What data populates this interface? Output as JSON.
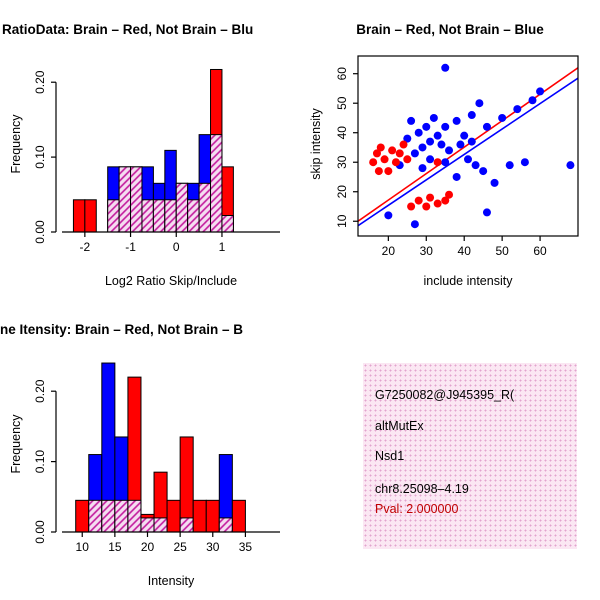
{
  "figure": {
    "background": "#FFFFFF"
  },
  "colors": {
    "brain_red": "#FF0000",
    "not_brain_blue": "#0000FF",
    "overlap_hatch": "#C2189C",
    "overlap_bg": "#F5DDF1",
    "axis": "#000000",
    "info_bg": "#FBE7F3",
    "info_dot": "#E2A3CE",
    "pval": "#C00000"
  },
  "chart_data": [
    {
      "id": "hist_ratio",
      "type": "bar",
      "subtype": "overlaid-histogram",
      "title": "RatioData: Brain – Red, Not Brain – Blu",
      "xlabel": "Log2 Ratio Skip/Include",
      "ylabel": "Frequency",
      "bin_width": 0.25,
      "bin_left_edges": [
        -2.25,
        -2.0,
        -1.75,
        -1.5,
        -1.25,
        -1.0,
        -0.75,
        -0.5,
        -0.25,
        0.0,
        0.25,
        0.5,
        0.75,
        1.0
      ],
      "series": [
        {
          "name": "Brain",
          "color": "#FF0000",
          "values": [
            0.043,
            0.043,
            0,
            0.043,
            0.087,
            0.087,
            0.043,
            0.043,
            0.043,
            0.065,
            0.043,
            0.065,
            0.217,
            0.087
          ]
        },
        {
          "name": "Not Brain",
          "color": "#0000FF",
          "values": [
            0,
            0,
            0,
            0.087,
            0.087,
            0.087,
            0.087,
            0.065,
            0.109,
            0.065,
            0.065,
            0.13,
            0.13,
            0.022
          ]
        }
      ],
      "xticks": [
        -2,
        -1,
        0,
        1
      ],
      "yticks": [
        0,
        0.1,
        0.2
      ],
      "xlim": [
        -2.5,
        2.27
      ],
      "ylim": [
        0,
        0.235
      ],
      "grid": false,
      "legend": "none"
    },
    {
      "id": "scatter_intensity",
      "type": "scatter",
      "title": "Brain – Red, Not Brain – Blue",
      "xlabel": "include intensity",
      "ylabel": "skip intensity",
      "xticks": [
        20,
        30,
        40,
        50,
        60
      ],
      "yticks": [
        10,
        20,
        30,
        40,
        50,
        60
      ],
      "xlim": [
        12,
        70
      ],
      "ylim": [
        5,
        66
      ],
      "grid": false,
      "legend": "none",
      "series": [
        {
          "name": "Brain",
          "color": "#FF0000",
          "points": [
            [
              16,
              30
            ],
            [
              17,
              33
            ],
            [
              17.5,
              27
            ],
            [
              18,
              35
            ],
            [
              19,
              31
            ],
            [
              20,
              27
            ],
            [
              21,
              34
            ],
            [
              22,
              30
            ],
            [
              23,
              33
            ],
            [
              24,
              36
            ],
            [
              25,
              31
            ],
            [
              26,
              15
            ],
            [
              28,
              17
            ],
            [
              30,
              15
            ],
            [
              31,
              18
            ],
            [
              33,
              16
            ],
            [
              35,
              17
            ],
            [
              36,
              19
            ],
            [
              33,
              30
            ]
          ]
        },
        {
          "name": "Not Brain",
          "color": "#0000FF",
          "points": [
            [
              20,
              12
            ],
            [
              23,
              29
            ],
            [
              25,
              38
            ],
            [
              26,
              44
            ],
            [
              27,
              33
            ],
            [
              27,
              9
            ],
            [
              28,
              40
            ],
            [
              29,
              35
            ],
            [
              29,
              28
            ],
            [
              30,
              42
            ],
            [
              31,
              37
            ],
            [
              31,
              31
            ],
            [
              32,
              45
            ],
            [
              33,
              39
            ],
            [
              34,
              36
            ],
            [
              35,
              42
            ],
            [
              35,
              30
            ],
            [
              35,
              62
            ],
            [
              36,
              34
            ],
            [
              38,
              44
            ],
            [
              38,
              25
            ],
            [
              39,
              36
            ],
            [
              40,
              39
            ],
            [
              41,
              31
            ],
            [
              42,
              46
            ],
            [
              42,
              37
            ],
            [
              43,
              29
            ],
            [
              44,
              50
            ],
            [
              45,
              27
            ],
            [
              46,
              42
            ],
            [
              46,
              13
            ],
            [
              48,
              23
            ],
            [
              50,
              45
            ],
            [
              52,
              29
            ],
            [
              54,
              48
            ],
            [
              56,
              30
            ],
            [
              58,
              51
            ],
            [
              60,
              54
            ],
            [
              68,
              29
            ]
          ]
        }
      ],
      "fit_lines": [
        {
          "name": "Brain fit",
          "color": "#FF0000",
          "from": [
            12,
            10
          ],
          "to": [
            70,
            62
          ]
        },
        {
          "name": "Not Brain fit",
          "color": "#0000FF",
          "from": [
            12,
            8.5
          ],
          "to": [
            70,
            58.5
          ]
        }
      ]
    },
    {
      "id": "hist_intensity",
      "type": "bar",
      "subtype": "overlaid-histogram",
      "title": "ne Itensity: Brain – Red, Not Brain – B",
      "xlabel": "Intensity",
      "ylabel": "Frequency",
      "bin_width": 2,
      "bin_left_edges": [
        9,
        11,
        13,
        15,
        17,
        19,
        21,
        23,
        25,
        27,
        29,
        31,
        33
      ],
      "series": [
        {
          "name": "Brain",
          "color": "#FF0000",
          "values": [
            0.045,
            0.045,
            0.045,
            0.045,
            0.22,
            0.025,
            0.085,
            0.045,
            0.135,
            0.045,
            0.045,
            0.02,
            0.045
          ]
        },
        {
          "name": "Not Brain",
          "color": "#0000FF",
          "values": [
            0,
            0.11,
            0.24,
            0.135,
            0.045,
            0.02,
            0.02,
            0,
            0.02,
            0,
            0,
            0.11,
            0
          ]
        }
      ],
      "xticks": [
        10,
        15,
        20,
        25,
        30,
        35
      ],
      "yticks": [
        0,
        0.1,
        0.2
      ],
      "xlim": [
        6.9,
        40.3
      ],
      "ylim": [
        0,
        0.25
      ],
      "grid": false,
      "legend": "none"
    }
  ],
  "info_box": {
    "lines": [
      "G7250082@J945395_R(",
      "altMutEx",
      "Nsd1",
      "chr8.25098–4.19"
    ],
    "pval": "Pval: 2.000000"
  }
}
